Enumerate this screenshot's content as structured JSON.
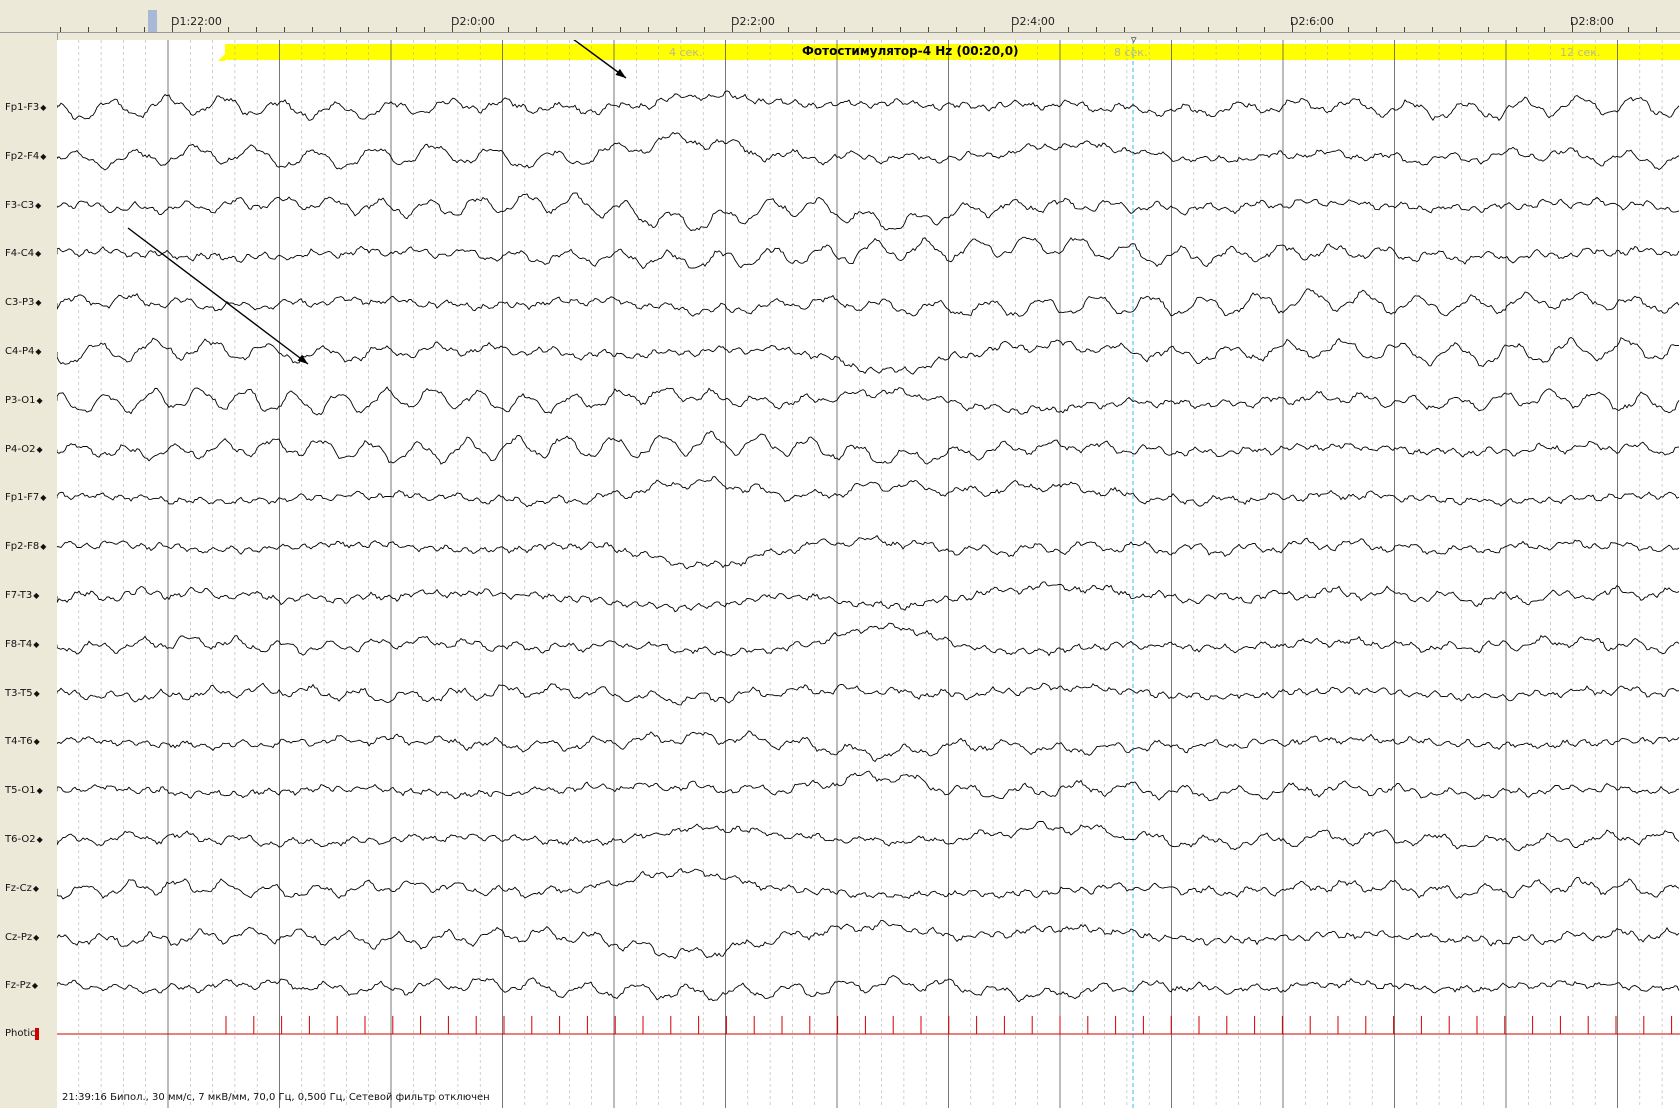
{
  "window": {
    "top_label": ""
  },
  "timeline": {
    "ticks": [
      {
        "label": "D1:22:00"
      },
      {
        "label": "D2:0:00"
      },
      {
        "label": "D2:2:00"
      },
      {
        "label": "D2:4:00"
      },
      {
        "label": "D2:6:00"
      },
      {
        "label": "D2:8:00"
      }
    ]
  },
  "stimulation": {
    "label": "Фотостимулятор-4 Hz (00:20,0)",
    "band_color": "#ffff00",
    "second_marks": [
      {
        "label": "4 сек."
      },
      {
        "label": "8 сек."
      },
      {
        "label": "12 сек."
      }
    ]
  },
  "channels": [
    {
      "name": "Fp1-F3"
    },
    {
      "name": "Fp2-F4"
    },
    {
      "name": "F3-C3"
    },
    {
      "name": "F4-C4"
    },
    {
      "name": "C3-P3"
    },
    {
      "name": "C4-P4"
    },
    {
      "name": "P3-O1"
    },
    {
      "name": "P4-O2"
    },
    {
      "name": "Fp1-F7"
    },
    {
      "name": "Fp2-F8"
    },
    {
      "name": "F7-T3"
    },
    {
      "name": "F8-T4"
    },
    {
      "name": "T3-T5"
    },
    {
      "name": "T4-T6"
    },
    {
      "name": "T5-O1"
    },
    {
      "name": "T6-O2"
    },
    {
      "name": "Fz-Cz"
    },
    {
      "name": "Cz-Pz"
    },
    {
      "name": "Fz-Pz"
    }
  ],
  "channel_marker": "◆",
  "photic": {
    "name": "Photic",
    "color": "#d00000"
  },
  "status": {
    "text": "21:39:16 Бипол., 30 мм/с, 7 мкВ/мм, 70,0 Гц, 0,500 Гц, Сетевой фильтр отключен"
  },
  "colors": {
    "trace": "#000000",
    "background": "#ffffff",
    "panel": "#ece9d8",
    "grid_major": "#555555",
    "grid_minor": "#b0b0b0",
    "cursor": "#33bbee",
    "photic": "#d00000"
  }
}
